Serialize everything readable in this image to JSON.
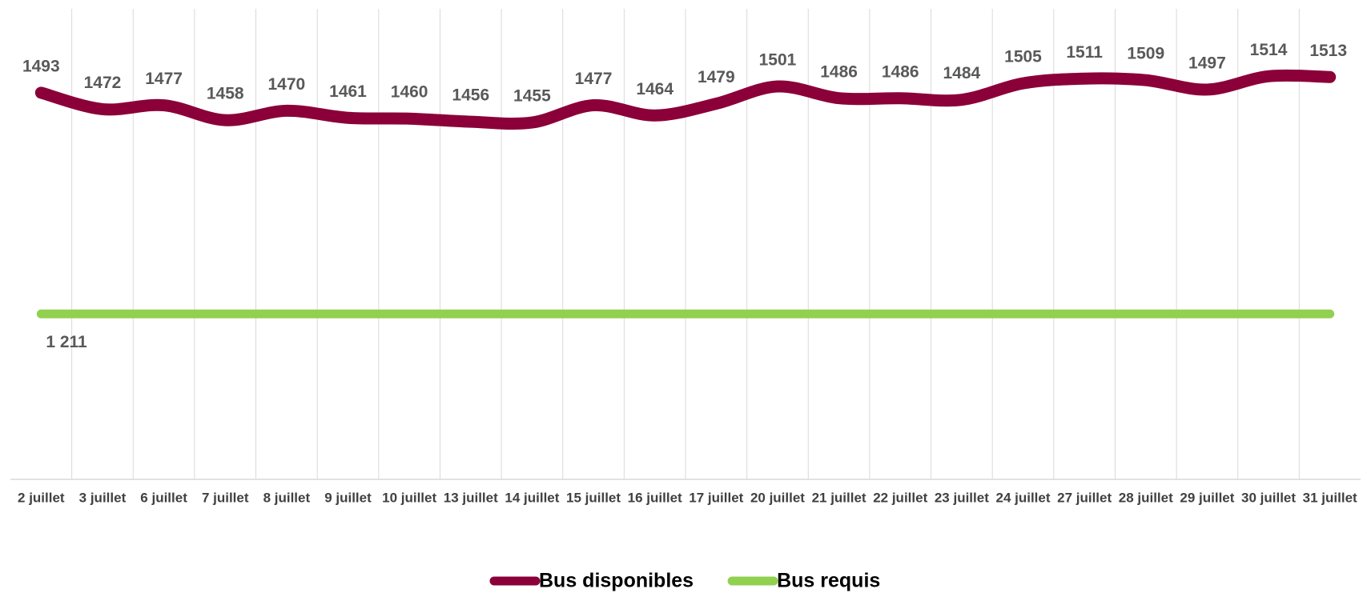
{
  "chart_data": {
    "type": "line",
    "categories": [
      "2 juillet",
      "3 juillet",
      "6 juillet",
      "7 juillet",
      "8 juillet",
      "9 juillet",
      "10 juillet",
      "13 juillet",
      "14 juillet",
      "15 juillet",
      "16 juillet",
      "17 juillet",
      "20 juillet",
      "21 juillet",
      "22 juillet",
      "23 juillet",
      "24 juillet",
      "27 juillet",
      "28 juillet",
      "29 juillet",
      "30 juillet",
      "31 juillet"
    ],
    "series": [
      {
        "name": "Bus disponibles",
        "color": "#8b0038",
        "values": [
          1493,
          1472,
          1477,
          1458,
          1470,
          1461,
          1460,
          1456,
          1455,
          1477,
          1464,
          1479,
          1501,
          1486,
          1486,
          1484,
          1505,
          1511,
          1509,
          1497,
          1514,
          1513
        ]
      },
      {
        "name": "Bus requis",
        "color": "#92d050",
        "values": [
          1211,
          1211,
          1211,
          1211,
          1211,
          1211,
          1211,
          1211,
          1211,
          1211,
          1211,
          1211,
          1211,
          1211,
          1211,
          1211,
          1211,
          1211,
          1211,
          1211,
          1211,
          1211
        ],
        "value_labels": [
          "1 211",
          null,
          null,
          null,
          null,
          null,
          null,
          null,
          null,
          null,
          null,
          null,
          null,
          null,
          null,
          null,
          null,
          null,
          null,
          null,
          null,
          null
        ]
      }
    ],
    "ylim": [
      1000,
      1600
    ],
    "grid": true,
    "smooth": true,
    "legend": "bottom"
  }
}
